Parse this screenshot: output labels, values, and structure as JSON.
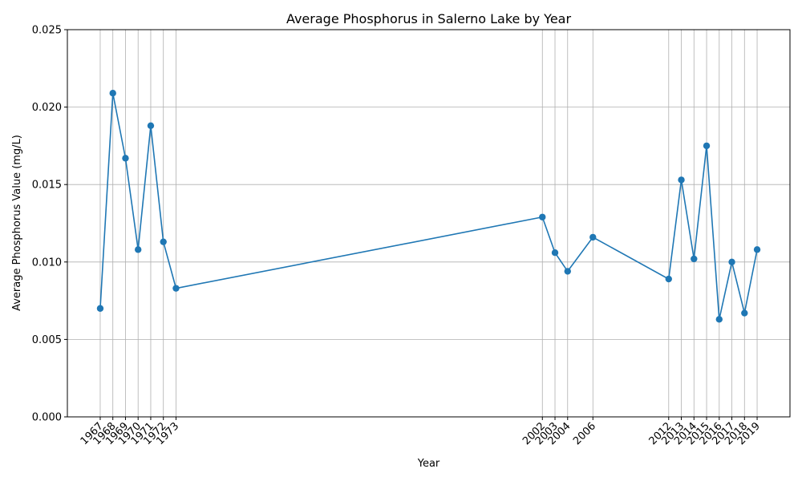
{
  "chart_data": {
    "type": "line",
    "title": "Average Phosphorus in Salerno Lake by Year",
    "xlabel": "Year",
    "ylabel": "Average Phosphorus Value (mg/L)",
    "xlim": [
      1964.4,
      2021.6
    ],
    "ylim": [
      0,
      0.025
    ],
    "grid": true,
    "marker": "circle",
    "color": "#1f77b4",
    "x": [
      1967,
      1968,
      1969,
      1970,
      1971,
      1972,
      1973,
      2002,
      2003,
      2004,
      2006,
      2012,
      2013,
      2014,
      2015,
      2016,
      2017,
      2018,
      2019
    ],
    "x_tick_labels": [
      "1967",
      "1968",
      "1969",
      "1970",
      "1971",
      "1972",
      "1973",
      "2002",
      "2003",
      "2004",
      "2006",
      "2012",
      "2013",
      "2014",
      "2015",
      "2016",
      "2017",
      "2018",
      "2019"
    ],
    "y_ticks": [
      0,
      0.005,
      0.01,
      0.015,
      0.02,
      0.025
    ],
    "y_tick_labels": [
      "0.000",
      "0.005",
      "0.010",
      "0.015",
      "0.020",
      "0.025"
    ],
    "series": [
      {
        "values": [
          0.007,
          0.0209,
          0.0167,
          0.0108,
          0.0188,
          0.0113,
          0.0083,
          0.0129,
          0.0106,
          0.0094,
          0.0116,
          0.0089,
          0.0153,
          0.0102,
          0.0175,
          0.0063,
          0.01,
          0.0067,
          0.0108
        ]
      }
    ]
  }
}
